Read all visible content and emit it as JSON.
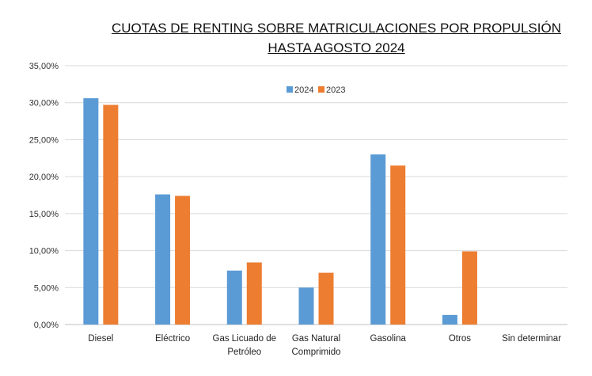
{
  "chart_data": {
    "type": "bar",
    "title": [
      "CUOTAS DE RENTING SOBRE MATRICULACIONES POR PROPULSIÓN",
      "HASTA AGOSTO 2024"
    ],
    "categories": [
      [
        "Diesel"
      ],
      [
        "Eléctrico"
      ],
      [
        "Gas Licuado de",
        "Petróleo"
      ],
      [
        "Gas Natural",
        "Comprimido"
      ],
      [
        "Gasolina"
      ],
      [
        "Otros"
      ],
      [
        "Sin determinar"
      ]
    ],
    "series": [
      {
        "name": "2024",
        "color": "#5b9bd5",
        "values": [
          30.6,
          17.6,
          7.3,
          5.0,
          23.0,
          1.3,
          0.0
        ]
      },
      {
        "name": "2023",
        "color": "#ed7d31",
        "values": [
          29.7,
          17.4,
          8.4,
          7.0,
          21.5,
          9.9,
          0.0
        ]
      }
    ],
    "yticks": [
      "0,00%",
      "5,00%",
      "10,00%",
      "15,00%",
      "20,00%",
      "25,00%",
      "30,00%",
      "35,00%"
    ],
    "ylim": [
      0,
      35
    ],
    "legend_position": "top-center",
    "grid": true
  }
}
